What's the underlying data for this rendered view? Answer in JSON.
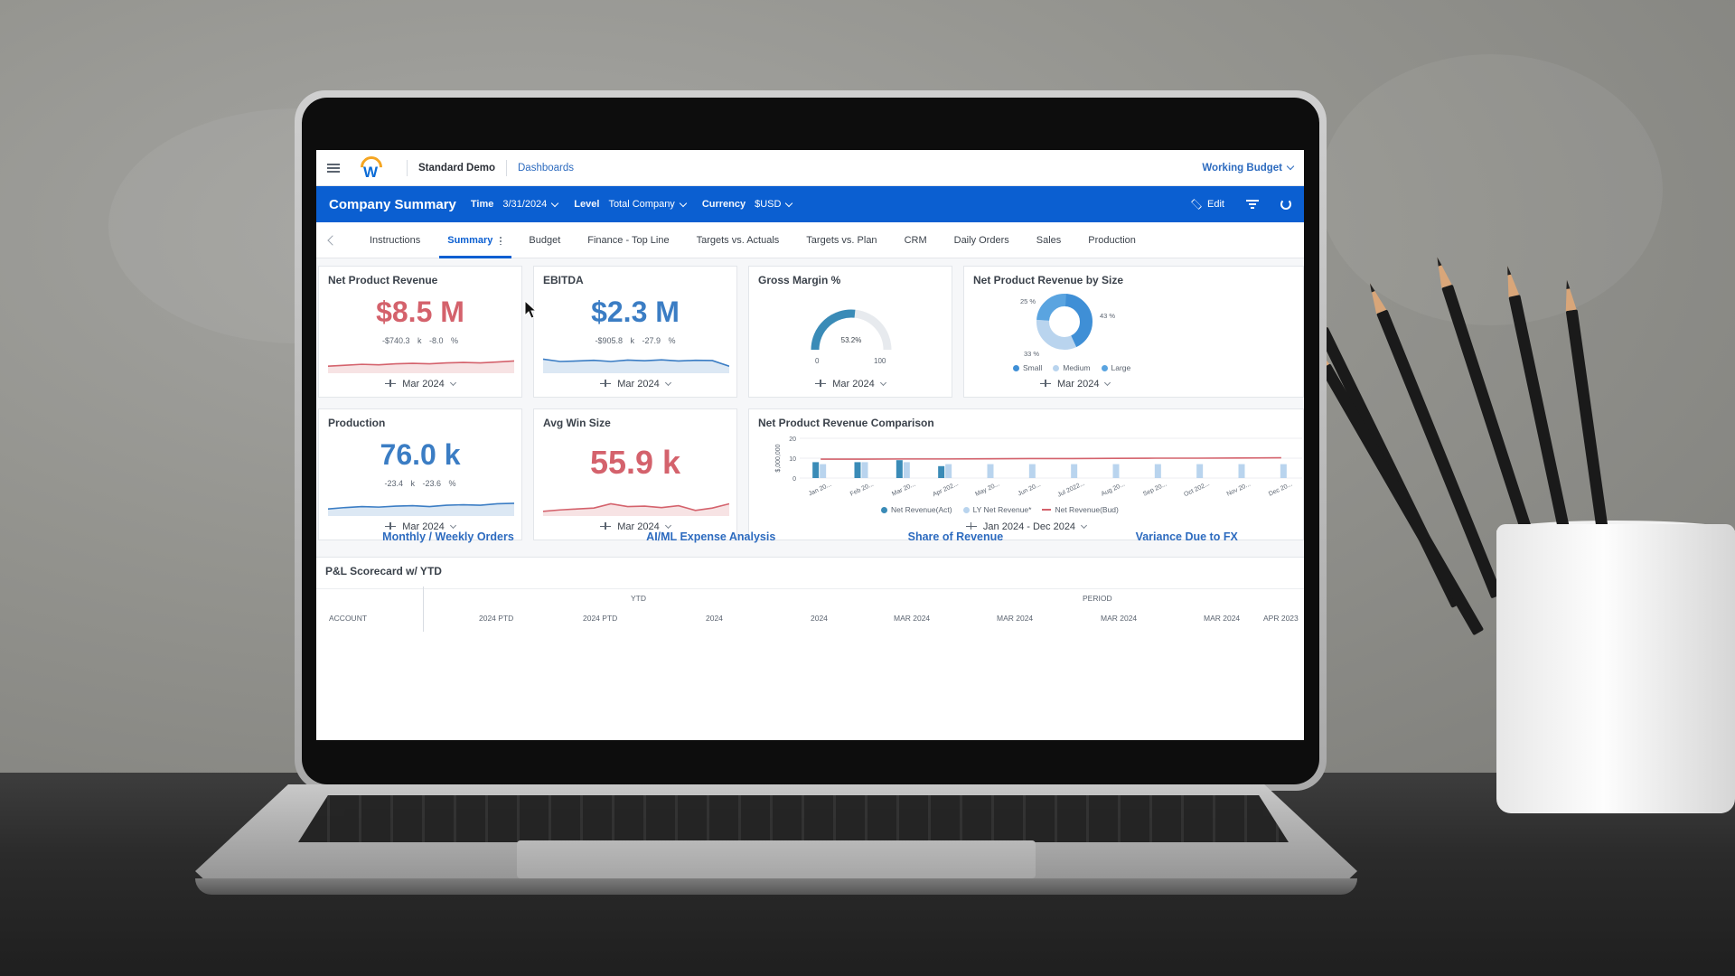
{
  "topbar": {
    "tenant": "Standard Demo",
    "breadcrumb": "Dashboards",
    "budget": "Working Budget"
  },
  "header": {
    "title": "Company Summary",
    "filters": [
      {
        "label": "Time",
        "value": "3/31/2024"
      },
      {
        "label": "Level",
        "value": "Total Company"
      },
      {
        "label": "Currency",
        "value": "$USD"
      }
    ],
    "edit_label": "Edit"
  },
  "tabs": [
    "Instructions",
    "Summary",
    "Budget",
    "Finance - Top Line",
    "Targets vs. Actuals",
    "Targets vs. Plan",
    "CRM",
    "Daily Orders",
    "Sales",
    "Production"
  ],
  "active_tab": "Summary",
  "cards": {
    "net_product_revenue": {
      "title": "Net Product Revenue",
      "value": "$8.5 M",
      "delta_abs": "-$740.3 k",
      "delta_pct": "-8.0 %",
      "period": "Mar 2024",
      "color": "#d4626c",
      "spark": [
        0.3,
        0.34,
        0.38,
        0.36,
        0.4,
        0.42,
        0.4,
        0.44,
        0.46,
        0.44,
        0.48,
        0.52
      ]
    },
    "ebitda": {
      "title": "EBITDA",
      "value": "$2.3 M",
      "delta_abs": "-$905.8 k",
      "delta_pct": "-27.9 %",
      "period": "Mar 2024",
      "color": "#3b7dc4",
      "spark": [
        0.6,
        0.5,
        0.52,
        0.55,
        0.5,
        0.56,
        0.53,
        0.57,
        0.52,
        0.55,
        0.54,
        0.3
      ]
    },
    "gross_margin": {
      "title": "Gross Margin %",
      "value": "53.2%",
      "min": "0",
      "max": "100",
      "percent": 53.2,
      "period": "Mar 2024"
    },
    "revenue_by_size": {
      "title": "Net Product Revenue by Size",
      "period": "Mar 2024",
      "slices": [
        {
          "name": "Small",
          "pct": 43,
          "label": "43 %",
          "color": "#3f8fd6"
        },
        {
          "name": "Medium",
          "pct": 33,
          "label": "33 %",
          "color": "#b9d4ee"
        },
        {
          "name": "Large",
          "pct": 25,
          "label": "25 %",
          "color": "#5aa4e0"
        }
      ]
    },
    "production": {
      "title": "Production",
      "value": "76.0 k",
      "delta_abs": "-23.4 k",
      "delta_pct": "-23.6 %",
      "period": "Mar 2024",
      "color": "#3b7dc4",
      "spark": [
        0.3,
        0.36,
        0.4,
        0.38,
        0.42,
        0.44,
        0.4,
        0.46,
        0.48,
        0.46,
        0.52,
        0.54
      ]
    },
    "avg_win_size": {
      "title": "Avg Win Size",
      "value": "55.9 k",
      "period": "Mar 2024",
      "color": "#d4626c",
      "spark": [
        0.2,
        0.26,
        0.3,
        0.34,
        0.52,
        0.4,
        0.42,
        0.36,
        0.44,
        0.24,
        0.34,
        0.52
      ]
    },
    "revenue_comparison": {
      "title": "Net Product Revenue Comparison",
      "period": "Jan 2024 - Dec 2024"
    }
  },
  "chart_data": {
    "type": "bar",
    "title": "Net Product Revenue Comparison",
    "ylabel": "$,000,000",
    "ylim": [
      0,
      20
    ],
    "yticks": [
      "20",
      "10",
      "0"
    ],
    "categories": [
      "Jan 20...",
      "Feb 20...",
      "Mar 20...",
      "Apr 202...",
      "May 20...",
      "Jun 20...",
      "Jul 2022...",
      "Aug 20...",
      "Sep 20...",
      "Oct 202...",
      "Nov 20...",
      "Dec 20..."
    ],
    "series": [
      {
        "name": "Net Revenue(Act)",
        "color": "#3a8bb7",
        "values": [
          8,
          8,
          9,
          6,
          0,
          0,
          0,
          0,
          0,
          0,
          0,
          0
        ]
      },
      {
        "name": "LY Net Revenue*",
        "color": "#b9d4ee",
        "values": [
          7,
          8,
          8,
          7,
          7,
          7,
          7,
          7,
          7,
          7,
          7,
          7
        ]
      },
      {
        "name": "Net Revenue(Bud)",
        "color": "#d4626c",
        "values": [
          9.5,
          9.5,
          9.6,
          9.6,
          9.7,
          9.8,
          9.8,
          9.9,
          10,
          10,
          10.1,
          10.2
        ]
      }
    ]
  },
  "links": [
    "Monthly / Weekly Orders",
    "AI/ML Expense Analysis",
    "Share of Revenue",
    "Variance Due to FX"
  ],
  "scorecard": {
    "title": "P&L Scorecard w/ YTD",
    "group_headers": [
      "YTD",
      "PERIOD"
    ],
    "columns": [
      "ACCOUNT",
      "2024 PTD",
      "2024 PTD",
      "2024",
      "2024",
      "MAR 2024",
      "MAR 2024",
      "MAR 2024",
      "MAR 2024",
      "APR 2023"
    ]
  }
}
